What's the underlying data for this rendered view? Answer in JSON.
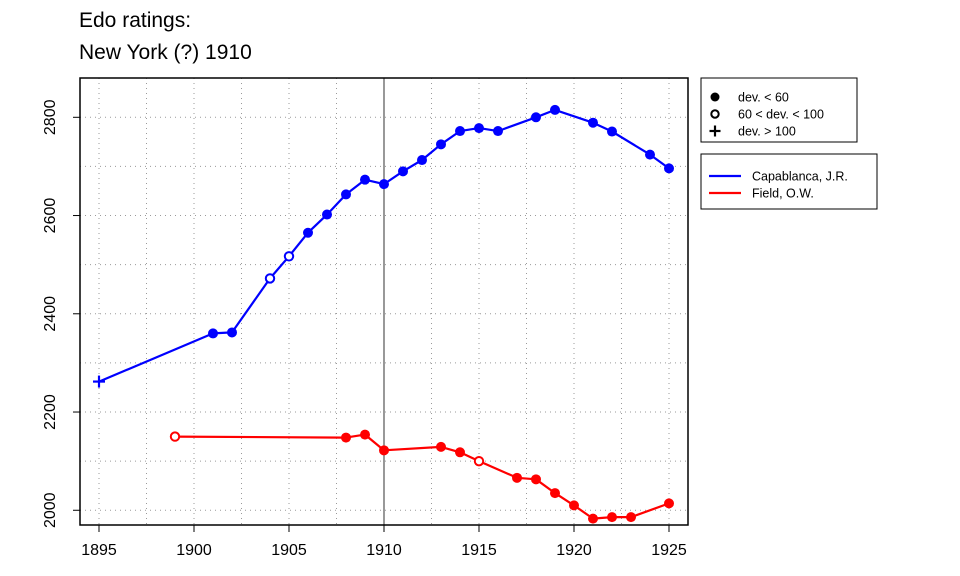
{
  "title_line1": "Edo ratings:",
  "title_line2": "New York (?) 1910",
  "chart_data": {
    "type": "line",
    "title": "Edo ratings: New York (?) 1910",
    "xlabel": "",
    "ylabel": "",
    "xlim": [
      1894,
      1926
    ],
    "ylim": [
      1970,
      2880
    ],
    "x_ticks": [
      1895,
      1900,
      1905,
      1910,
      1915,
      1920,
      1925
    ],
    "y_ticks": [
      2000,
      2200,
      2400,
      2600,
      2800
    ],
    "grid": true,
    "vline": 1910,
    "legend_placement": "right",
    "marker_legend": [
      {
        "symbol": "filled",
        "label": "dev. < 60"
      },
      {
        "symbol": "open",
        "label": "60 < dev. < 100"
      },
      {
        "symbol": "plus",
        "label": "dev. > 100"
      }
    ],
    "series": [
      {
        "name": "Capablanca, J.R.",
        "color": "#0000ff",
        "points": [
          {
            "x": 1895,
            "y": 2262,
            "m": "plus"
          },
          {
            "x": 1901,
            "y": 2360,
            "m": "filled"
          },
          {
            "x": 1902,
            "y": 2362,
            "m": "filled"
          },
          {
            "x": 1904,
            "y": 2472,
            "m": "open"
          },
          {
            "x": 1905,
            "y": 2517,
            "m": "open"
          },
          {
            "x": 1906,
            "y": 2565,
            "m": "filled"
          },
          {
            "x": 1907,
            "y": 2602,
            "m": "filled"
          },
          {
            "x": 1908,
            "y": 2643,
            "m": "filled"
          },
          {
            "x": 1909,
            "y": 2673,
            "m": "filled"
          },
          {
            "x": 1910,
            "y": 2664,
            "m": "filled"
          },
          {
            "x": 1911,
            "y": 2690,
            "m": "filled"
          },
          {
            "x": 1912,
            "y": 2713,
            "m": "filled"
          },
          {
            "x": 1913,
            "y": 2745,
            "m": "filled"
          },
          {
            "x": 1914,
            "y": 2772,
            "m": "filled"
          },
          {
            "x": 1915,
            "y": 2778,
            "m": "filled"
          },
          {
            "x": 1916,
            "y": 2772,
            "m": "filled"
          },
          {
            "x": 1918,
            "y": 2800,
            "m": "filled"
          },
          {
            "x": 1919,
            "y": 2815,
            "m": "filled"
          },
          {
            "x": 1921,
            "y": 2789,
            "m": "filled"
          },
          {
            "x": 1922,
            "y": 2771,
            "m": "filled"
          },
          {
            "x": 1924,
            "y": 2724,
            "m": "filled"
          },
          {
            "x": 1925,
            "y": 2696,
            "m": "filled"
          }
        ]
      },
      {
        "name": "Field, O.W.",
        "color": "#ff0000",
        "points": [
          {
            "x": 1899,
            "y": 2150,
            "m": "open"
          },
          {
            "x": 1908,
            "y": 2148,
            "m": "filled"
          },
          {
            "x": 1909,
            "y": 2154,
            "m": "filled"
          },
          {
            "x": 1910,
            "y": 2122,
            "m": "filled"
          },
          {
            "x": 1913,
            "y": 2129,
            "m": "filled"
          },
          {
            "x": 1914,
            "y": 2118,
            "m": "filled"
          },
          {
            "x": 1915,
            "y": 2100,
            "m": "open"
          },
          {
            "x": 1917,
            "y": 2066,
            "m": "filled"
          },
          {
            "x": 1918,
            "y": 2063,
            "m": "filled"
          },
          {
            "x": 1919,
            "y": 2035,
            "m": "filled"
          },
          {
            "x": 1920,
            "y": 2010,
            "m": "filled"
          },
          {
            "x": 1921,
            "y": 1983,
            "m": "filled"
          },
          {
            "x": 1922,
            "y": 1986,
            "m": "filled"
          },
          {
            "x": 1923,
            "y": 1986,
            "m": "filled"
          },
          {
            "x": 1925,
            "y": 2014,
            "m": "filled"
          }
        ]
      }
    ]
  }
}
